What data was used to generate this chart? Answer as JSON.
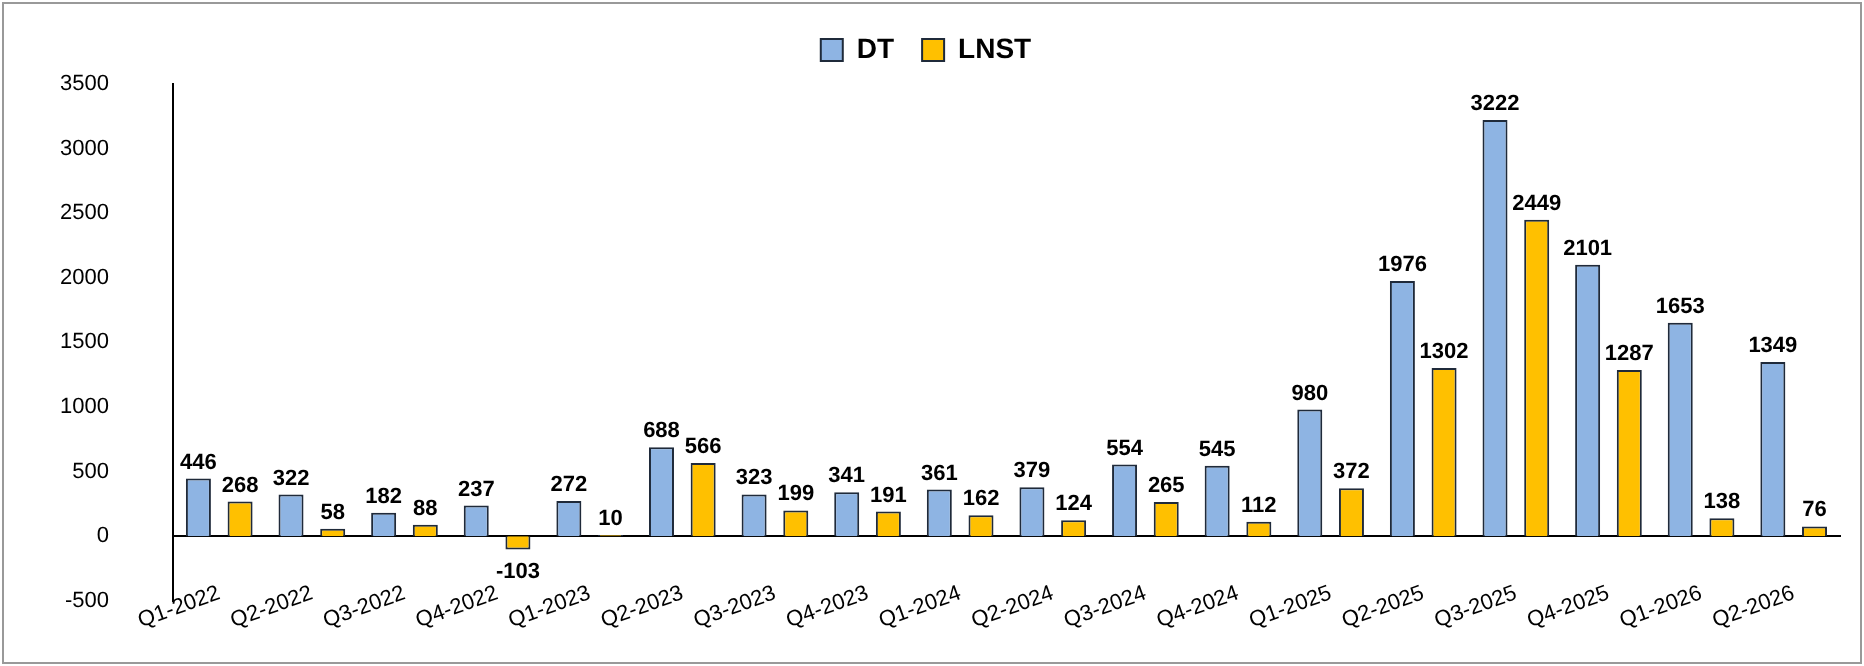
{
  "chart_data": {
    "type": "bar",
    "categories": [
      "Q1-2022",
      "Q2-2022",
      "Q3-2022",
      "Q4-2022",
      "Q1-2023",
      "Q2-2023",
      "Q3-2023",
      "Q4-2023",
      "Q1-2024",
      "Q2-2024",
      "Q3-2024",
      "Q4-2024",
      "Q1-2025",
      "Q2-2025",
      "Q3-2025",
      "Q4-2025",
      "Q1-2026",
      "Q2-2026"
    ],
    "series": [
      {
        "name": "DT",
        "color": "#8eb4e3",
        "values": [
          446,
          322,
          182,
          237,
          272,
          688,
          323,
          341,
          361,
          379,
          554,
          545,
          980,
          1976,
          3222,
          2101,
          1653,
          1349
        ]
      },
      {
        "name": "LNST",
        "color": "#ffc000",
        "values": [
          268,
          58,
          88,
          -103,
          10,
          566,
          199,
          191,
          162,
          124,
          265,
          112,
          372,
          1302,
          2449,
          1287,
          138,
          76
        ]
      }
    ],
    "ylim": [
      -500,
      3500
    ],
    "yticks": [
      -500,
      0,
      500,
      1000,
      1500,
      2000,
      2500,
      3000,
      3500
    ],
    "grid": false,
    "legend": "top",
    "data_labels": true
  }
}
